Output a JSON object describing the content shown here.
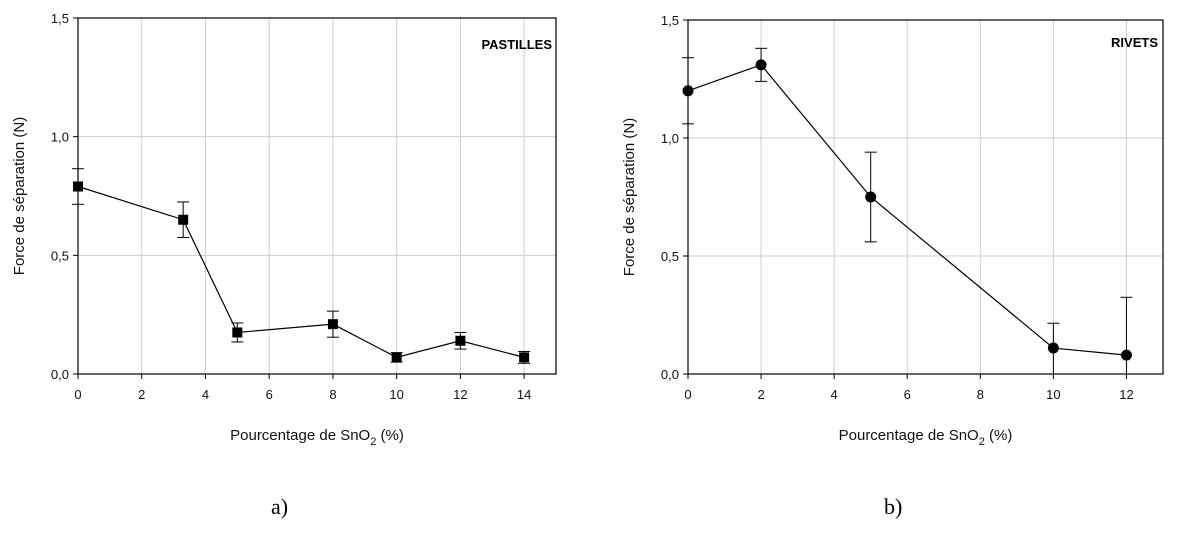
{
  "chart_data": [
    {
      "type": "line",
      "panel_label": "a)",
      "annotation": "PASTILLES",
      "xlabel": "Pourcentage de SnO2 (%)",
      "xlabel_parts": [
        "Pourcentage de SnO",
        "2",
        " (%)"
      ],
      "ylabel": "Force de séparation (N)",
      "xlim": [
        0,
        15
      ],
      "ylim": [
        0,
        1.5
      ],
      "xticks": [
        0,
        2,
        4,
        6,
        8,
        10,
        12,
        14
      ],
      "xtick_labels": [
        "0",
        "2",
        "4",
        "6",
        "8",
        "10",
        "12",
        "14"
      ],
      "yticks": [
        0,
        0.5,
        1.0,
        1.5
      ],
      "ytick_labels": [
        "0,0",
        "0,5",
        "1,0",
        "1,5"
      ],
      "grid": true,
      "marker": "square",
      "series": [
        {
          "x": [
            0,
            3.3,
            5,
            8,
            10,
            12,
            14
          ],
          "y": [
            0.79,
            0.65,
            0.175,
            0.21,
            0.07,
            0.14,
            0.07
          ],
          "err": [
            0.075,
            0.075,
            0.04,
            0.055,
            0.02,
            0.035,
            0.025
          ]
        }
      ]
    },
    {
      "type": "line",
      "panel_label": "b)",
      "annotation": "RIVETS",
      "xlabel": "Pourcentage de SnO2 (%)",
      "xlabel_parts": [
        "Pourcentage de SnO",
        "2",
        " (%)"
      ],
      "ylabel": "Force de séparation (N)",
      "xlim": [
        0,
        13
      ],
      "ylim": [
        0,
        1.5
      ],
      "xticks": [
        0,
        2,
        4,
        6,
        8,
        10,
        12
      ],
      "xtick_labels": [
        "0",
        "2",
        "4",
        "6",
        "8",
        "10",
        "12"
      ],
      "yticks": [
        0,
        0.5,
        1.0,
        1.5
      ],
      "ytick_labels": [
        "0,0",
        "0,5",
        "1,0",
        "1,5"
      ],
      "grid": true,
      "marker": "circle",
      "series": [
        {
          "x": [
            0,
            2,
            5,
            10,
            12
          ],
          "y": [
            1.2,
            1.31,
            0.75,
            0.11,
            0.08
          ],
          "err_upper": [
            0.14,
            0.07,
            0.19,
            0.105,
            0.245
          ],
          "err_lower": [
            0.14,
            0.07,
            0.19,
            0.11,
            0.08
          ]
        }
      ]
    }
  ]
}
